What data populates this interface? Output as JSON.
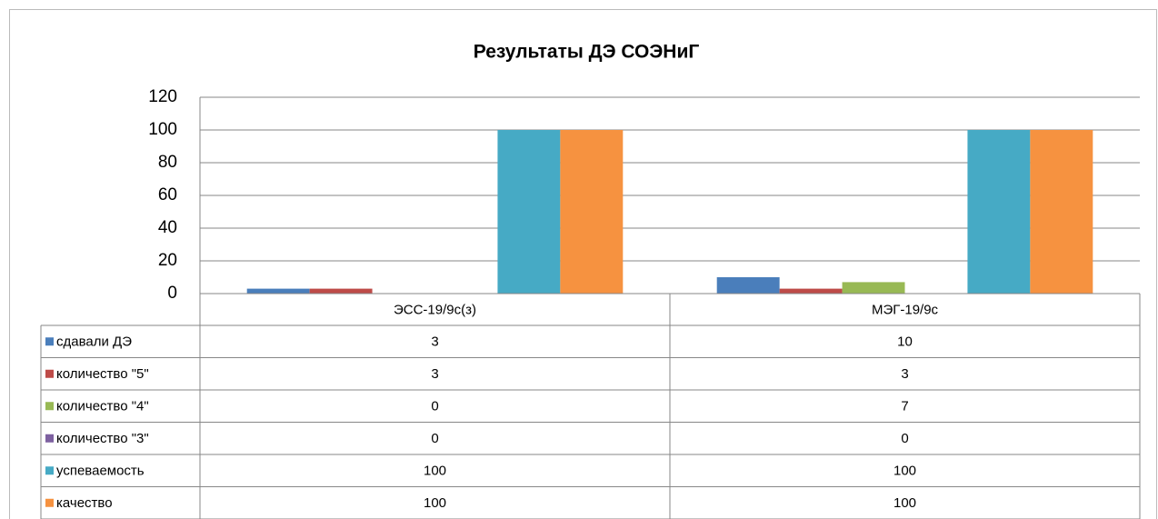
{
  "chart_data": {
    "type": "bar",
    "title": "Результаты ДЭ СОЭНиГ",
    "categories": [
      "ЭСС-19/9с(з)",
      "МЭГ-19/9с"
    ],
    "series": [
      {
        "name": "сдавали ДЭ",
        "color": "#4a7ebb",
        "values": [
          3,
          10
        ]
      },
      {
        "name": "количество \"5\"",
        "color": "#be4b48",
        "values": [
          3,
          3
        ]
      },
      {
        "name": "количество \"4\"",
        "color": "#98b954",
        "values": [
          0,
          7
        ]
      },
      {
        "name": "количество \"3\"",
        "color": "#7d60a0",
        "values": [
          0,
          0
        ]
      },
      {
        "name": "успеваемость",
        "color": "#46aac5",
        "values": [
          100,
          100
        ]
      },
      {
        "name": "качество",
        "color": "#f69240",
        "values": [
          100,
          100
        ]
      }
    ],
    "ylim": [
      0,
      120
    ],
    "yticks": [
      0,
      20,
      40,
      60,
      80,
      100,
      120
    ],
    "grid": true,
    "data_table": true
  }
}
